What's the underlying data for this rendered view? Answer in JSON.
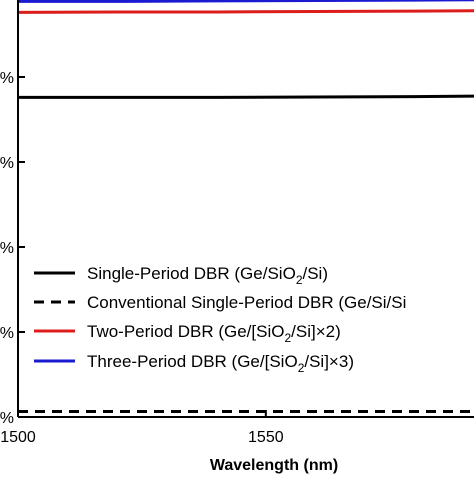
{
  "chart_data": {
    "type": "line",
    "xlabel": "Wavelength (nm)",
    "ylabel": "",
    "xlim": [
      1500,
      1592
    ],
    "ylim": [
      0,
      100
    ],
    "x_ticks": [
      {
        "value": 1500,
        "label": "1500"
      },
      {
        "value": 1550,
        "label": "1550"
      }
    ],
    "y_ticks": [
      {
        "value": 0,
        "label": "%"
      },
      {
        "value": 20,
        "label": "%"
      },
      {
        "value": 40,
        "label": "%"
      },
      {
        "value": 60,
        "label": "%"
      },
      {
        "value": 80,
        "label": "%"
      },
      {
        "value": 100,
        "label": "%"
      }
    ],
    "legend_position": "lower-left",
    "grid": false,
    "series": [
      {
        "name": "Single-Period DBR (Ge/SiO",
        "name_sub": "2",
        "name_tail": "/Si)",
        "color": "#000000",
        "dash": "solid",
        "x": [
          1500,
          1520,
          1540,
          1560,
          1580,
          1592
        ],
        "y": [
          75.2,
          75.2,
          75.2,
          75.3,
          75.4,
          75.5
        ]
      },
      {
        "name": "Conventional Single-Period DBR (Ge/Si/Si",
        "name_sub": "",
        "name_tail": "",
        "color": "#000000",
        "dash": "dashed",
        "x": [
          1500,
          1520,
          1540,
          1560,
          1580,
          1592
        ],
        "y": [
          1.3,
          1.3,
          1.3,
          1.3,
          1.3,
          1.3
        ]
      },
      {
        "name": "Two-Period DBR (Ge/[SiO",
        "name_sub": "2",
        "name_tail": "/Si]×2)",
        "color": "#dd1c1c",
        "dash": "solid",
        "x": [
          1500,
          1520,
          1540,
          1560,
          1580,
          1592
        ],
        "y": [
          95.2,
          95.3,
          95.3,
          95.4,
          95.5,
          95.6
        ]
      },
      {
        "name": "Three-Period DBR (Ge/[SiO",
        "name_sub": "2",
        "name_tail": "/Si]×3)",
        "color": "#1a1ad0",
        "dash": "solid",
        "x": [
          1500,
          1520,
          1540,
          1560,
          1580,
          1592
        ],
        "y": [
          97.8,
          97.8,
          97.9,
          98.0,
          98.1,
          98.2
        ]
      }
    ]
  }
}
